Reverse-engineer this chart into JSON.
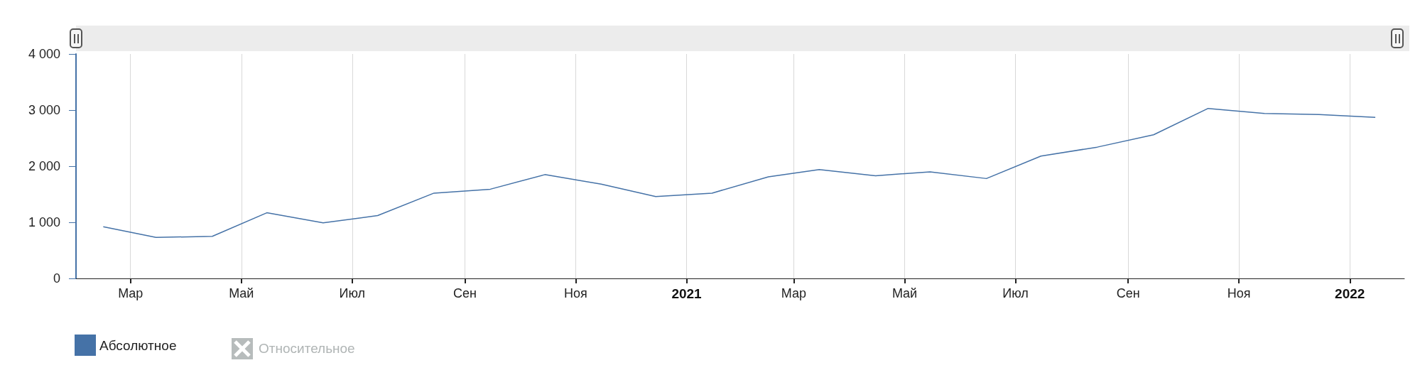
{
  "chart_data": {
    "type": "line",
    "x": [
      "2020-02-15",
      "2020-03-15",
      "2020-04-15",
      "2020-05-15",
      "2020-06-15",
      "2020-07-15",
      "2020-08-15",
      "2020-09-15",
      "2020-10-15",
      "2020-11-15",
      "2020-12-15",
      "2021-01-15",
      "2021-02-15",
      "2021-03-15",
      "2021-04-15",
      "2021-05-15",
      "2021-06-15",
      "2021-07-15",
      "2021-08-15",
      "2021-09-15",
      "2021-10-15",
      "2021-11-15",
      "2021-12-15",
      "2022-01-15"
    ],
    "series": [
      {
        "name": "Абсолютное",
        "color": "#4572a7",
        "values": [
          920,
          730,
          750,
          1170,
          990,
          1120,
          1520,
          1590,
          1850,
          1680,
          1460,
          1520,
          1810,
          1940,
          1830,
          1900,
          1780,
          2180,
          2340,
          2560,
          3030,
          2940,
          2920,
          2870
        ]
      }
    ],
    "xlim": [
      "2020-01-31",
      "2022-01-31"
    ],
    "xticks": [
      {
        "value": "2020-03-01",
        "label": "Мар"
      },
      {
        "value": "2020-05-01",
        "label": "Май"
      },
      {
        "value": "2020-07-01",
        "label": "Июл"
      },
      {
        "value": "2020-09-01",
        "label": "Сен"
      },
      {
        "value": "2020-11-01",
        "label": "Ноя"
      },
      {
        "value": "2021-01-01",
        "label": "2021"
      },
      {
        "value": "2021-03-01",
        "label": "Мар"
      },
      {
        "value": "2021-05-01",
        "label": "Май"
      },
      {
        "value": "2021-07-01",
        "label": "Июл"
      },
      {
        "value": "2021-09-01",
        "label": "Сен"
      },
      {
        "value": "2021-11-01",
        "label": "Ноя"
      },
      {
        "value": "2022-01-01",
        "label": "2022"
      }
    ],
    "ylim": [
      0,
      4000
    ],
    "yticks": [
      0,
      {
        "value": 1000,
        "label": "1 000"
      },
      {
        "value": 2000,
        "label": "2 000"
      },
      {
        "value": 3000,
        "label": "3 000"
      },
      {
        "value": 4000,
        "label": "4 000"
      }
    ],
    "grid": "x",
    "legend": "bottom left",
    "marker": "none",
    "line_style": "solid",
    "annotations": [
      "Относительное"
    ]
  }
}
